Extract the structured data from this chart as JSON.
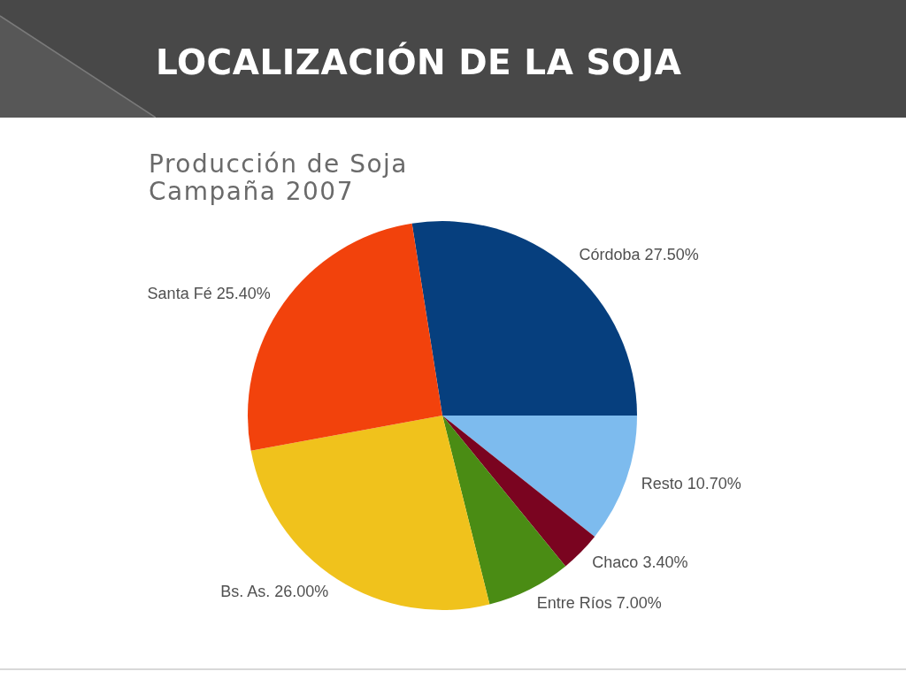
{
  "chart_data": {
    "type": "pie",
    "title": "LOCALIZACIÓN DE LA SOJA",
    "subtitle": "Producción de Soja\nCampaña 2007",
    "categories": [
      "Córdoba",
      "Resto",
      "Chaco",
      "Entre Ríos",
      "Bs. As.",
      "Santa Fé"
    ],
    "values": [
      27.5,
      10.7,
      3.4,
      7.0,
      26.0,
      25.4
    ],
    "value_labels": [
      "27.50%",
      "10.70%",
      "3.40%",
      "7.00%",
      "26.00%",
      "25.40%"
    ],
    "colors": [
      "#063f7e",
      "#7dbbee",
      "#7a0420",
      "#4a8c14",
      "#f0c21c",
      "#f2420c"
    ],
    "legend": false
  }
}
